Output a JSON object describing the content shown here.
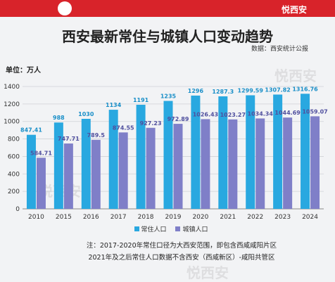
{
  "brand": {
    "name": "悦西安"
  },
  "title": "西安最新常住与城镇人口变动趋势",
  "source": "数据：西安统计公报",
  "unit": "单位：万人",
  "notes": [
    "注：2017-2020年常住口径为大西安范围，即包含西咸咸阳片区",
    "2021年及之后常住人口数据不含西安（西咸新区）-咸阳共管区"
  ],
  "watermarks": [
    "悦西安",
    "悦西安",
    "悦西安"
  ],
  "colors": {
    "resident": "#29a8e0",
    "urban": "#7f7fc8",
    "bar": "#d8232a"
  },
  "chart_data": {
    "type": "bar",
    "categories": [
      "2010",
      "2015",
      "2016",
      "2017",
      "2018",
      "2019",
      "2020",
      "2021",
      "2022",
      "2023",
      "2024"
    ],
    "series": [
      {
        "name": "常住人口",
        "values": [
          847.41,
          988,
          1030,
          1134,
          1191,
          1235,
          1296,
          1287.3,
          1299.59,
          1307.82,
          1316.76
        ],
        "labels": [
          "847.41",
          "988",
          "1030",
          "1134",
          "1191",
          "1235",
          "1296",
          "1287.3",
          "1299.59",
          "1307.82",
          "1316.76"
        ]
      },
      {
        "name": "城镇人口",
        "values": [
          584.71,
          747.71,
          789.5,
          874.55,
          927.23,
          972.89,
          1026.43,
          1023.27,
          1034.34,
          1044.69,
          1059.07
        ],
        "labels": [
          "584.71",
          "747.71",
          "789.5",
          "874.55",
          "927.23",
          "972.89",
          "1026.43",
          "1023.27",
          "1034.34",
          "1044.69",
          "1059.07"
        ]
      }
    ],
    "ylim": [
      0,
      1400
    ],
    "yticks": [
      0,
      200,
      400,
      600,
      800,
      1000,
      1200,
      1400
    ],
    "grid": true,
    "legend_position": "bottom"
  }
}
